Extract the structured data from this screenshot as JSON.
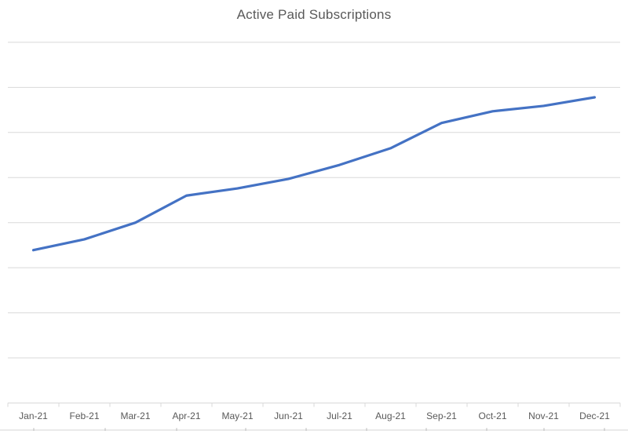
{
  "chart_data": {
    "type": "line",
    "title": "Active Paid Subscriptions",
    "categories": [
      "Jan-21",
      "Feb-21",
      "Mar-21",
      "Apr-21",
      "May-21",
      "Jun-21",
      "Jul-21",
      "Aug-21",
      "Sep-21",
      "Oct-21",
      "Nov-21",
      "Dec-21"
    ],
    "series": [
      {
        "name": "Active Paid Subscriptions",
        "values_gridline_units": [
          3.39,
          3.63,
          4.0,
          4.6,
          4.76,
          4.97,
          5.28,
          5.65,
          6.21,
          6.47,
          6.59,
          6.78
        ],
        "color": "#4472C4"
      }
    ],
    "xlabel": "",
    "ylabel": "",
    "y_axis_labels_visible": false,
    "ylim_gridline_units": [
      0,
      8
    ],
    "gridline_count_intervals": 8,
    "gridlines": "horizontal-major",
    "legend": "none"
  },
  "styles": {
    "background_color": "#FFFFFF",
    "gridline_color": "#D9D9D9",
    "axis_line_color": "#D9D9D9",
    "tick_color": "#D9D9D9",
    "title_color": "#595959",
    "axis_label_color": "#595959",
    "series_line_color": "#4472C4",
    "sheet_line_color": "#E4E4E4",
    "sheet_tick_color": "#CFCFCF"
  },
  "background_sheet": {
    "column_tick_x": [
      43,
      134,
      225,
      313,
      390,
      467,
      543,
      620,
      693,
      770
    ]
  }
}
